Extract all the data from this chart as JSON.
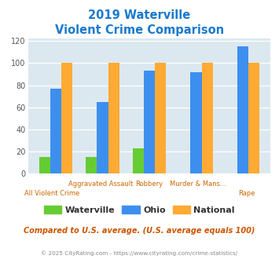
{
  "title_line1": "2019 Waterville",
  "title_line2": "Violent Crime Comparison",
  "categories": [
    "All Violent Crime",
    "Aggravated Assault",
    "Robbery",
    "Murder & Mans...",
    "Rape"
  ],
  "waterville": [
    15,
    15,
    23,
    0,
    0
  ],
  "ohio": [
    77,
    65,
    93,
    92,
    115
  ],
  "national": [
    100,
    100,
    100,
    100,
    100
  ],
  "colors": {
    "waterville": "#66cc33",
    "ohio": "#3d8fef",
    "national": "#ffaa33"
  },
  "title_color": "#1a7acc",
  "yticks": [
    0,
    20,
    40,
    60,
    80,
    100,
    120
  ],
  "bg_color": "#dce8f0",
  "fig_bg": "#ffffff",
  "footnote": "Compared to U.S. average. (U.S. average equals 100)",
  "copyright": "© 2025 CityRating.com - https://www.cityrating.com/crime-statistics/",
  "legend_labels": [
    "Waterville",
    "Ohio",
    "National"
  ],
  "row1_labels": [
    "",
    "Aggravated Assault",
    "Robbery",
    "Murder & Mans...",
    ""
  ],
  "row2_labels": [
    "All Violent Crime",
    "",
    "",
    "",
    "Rape"
  ]
}
